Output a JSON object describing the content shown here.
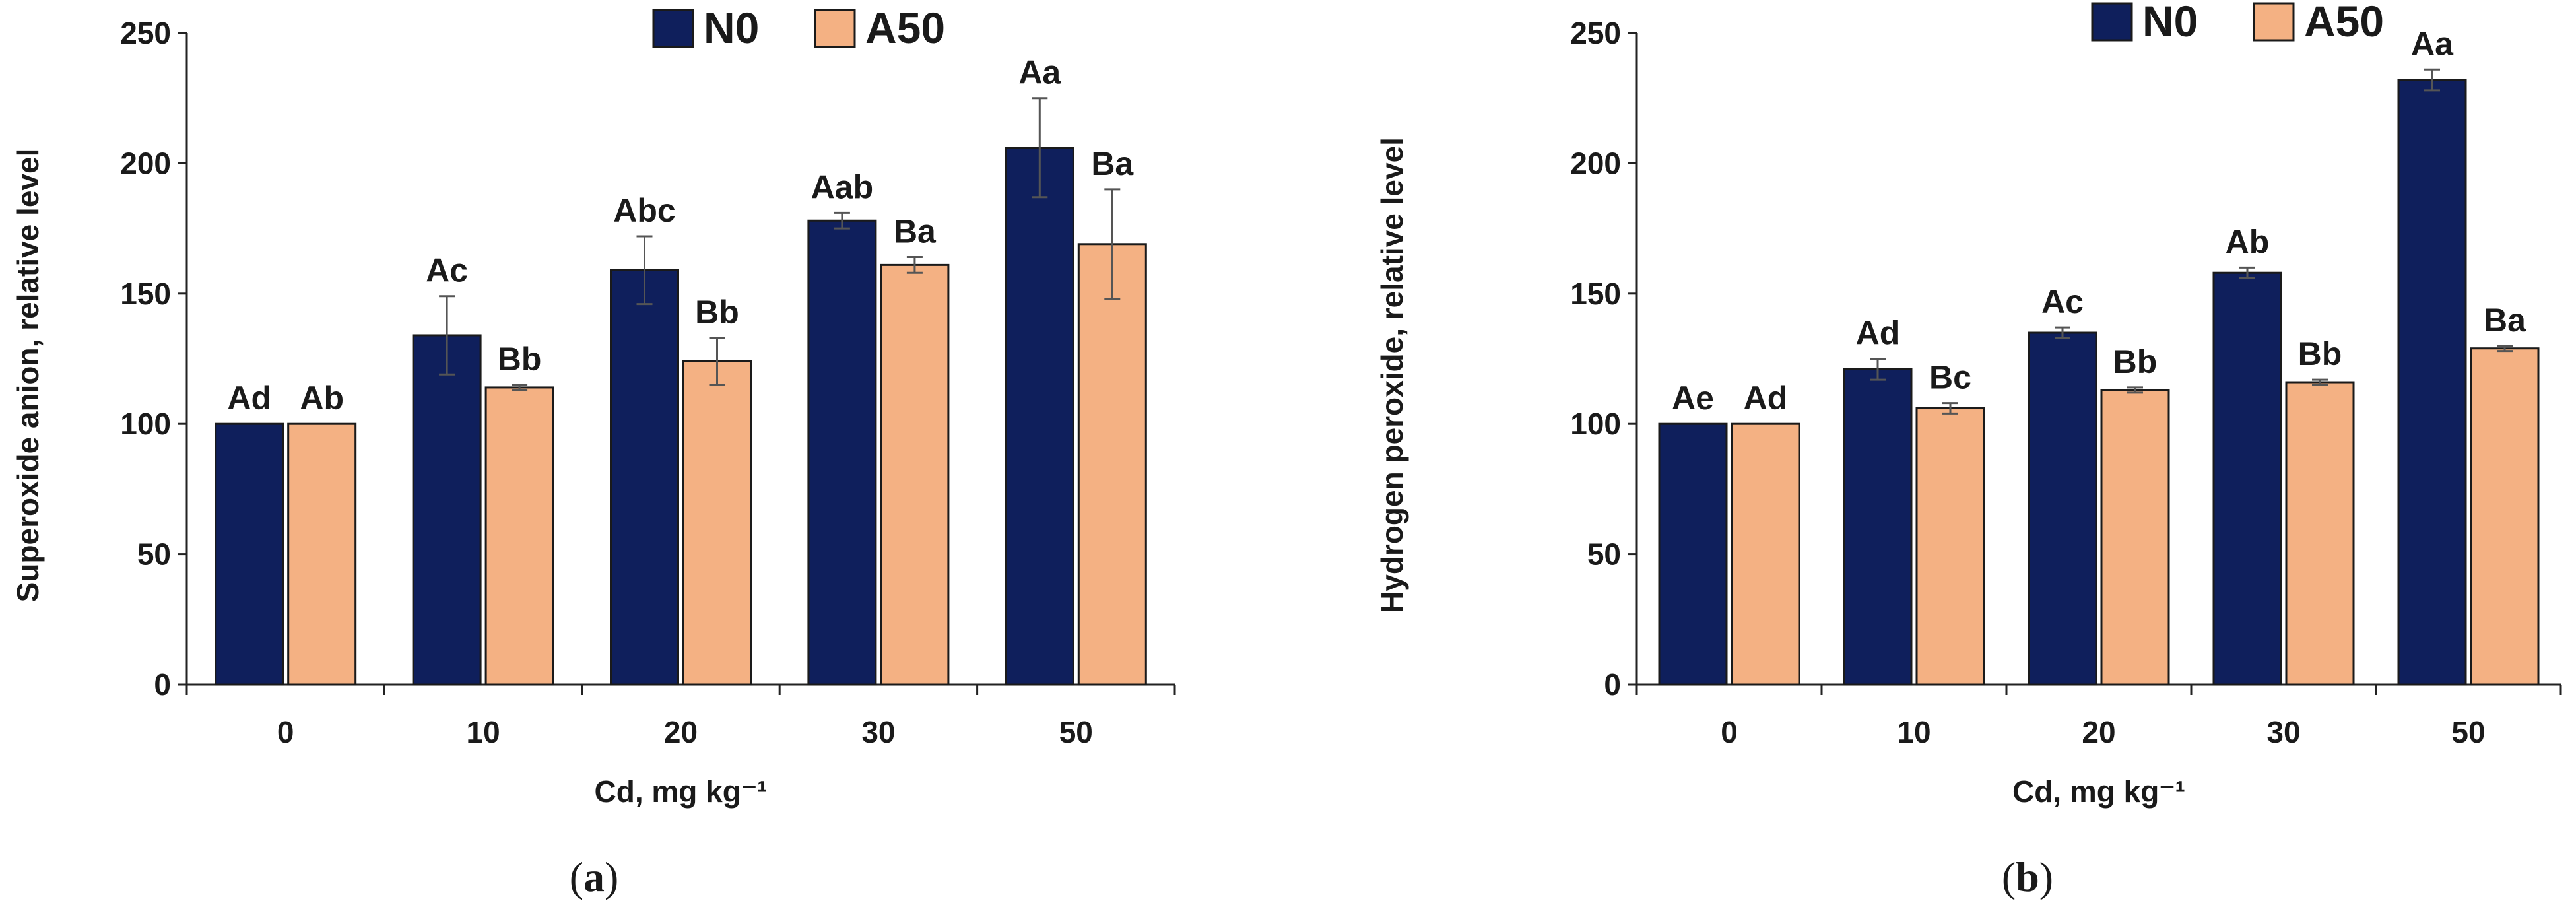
{
  "colors": {
    "N0": "#0f1f5c",
    "A50": "#f4b183"
  },
  "chart_data": [
    {
      "type": "bar",
      "panel_label": "(a)",
      "panel_letter": "a",
      "xlabel": "Cd, mg kg⁻¹",
      "ylabel": "Superoxide anion, relative level",
      "categories": [
        "0",
        "10",
        "20",
        "30",
        "50"
      ],
      "ylim": [
        0,
        250
      ],
      "yticks": [
        0,
        50,
        100,
        150,
        200,
        250
      ],
      "legend": [
        "N0",
        "A50"
      ],
      "series": [
        {
          "name": "N0",
          "values": [
            100,
            134,
            159,
            178,
            206
          ],
          "errors": [
            0,
            15,
            13,
            3,
            19
          ],
          "labels": [
            "Ad",
            "Ac",
            "Abc",
            "Aab",
            "Aa"
          ]
        },
        {
          "name": "A50",
          "values": [
            100,
            114,
            124,
            161,
            169
          ],
          "errors": [
            0,
            1,
            9,
            3,
            21
          ],
          "labels": [
            "Ab",
            "Bb",
            "Bb",
            "Ba",
            "Ba"
          ]
        }
      ]
    },
    {
      "type": "bar",
      "panel_label": "(b)",
      "panel_letter": "b",
      "xlabel": "Cd, mg kg⁻¹",
      "ylabel": "Hydrogen peroxide, relative level",
      "categories": [
        "0",
        "10",
        "20",
        "30",
        "50"
      ],
      "ylim": [
        0,
        250
      ],
      "yticks": [
        0,
        50,
        100,
        150,
        200,
        250
      ],
      "legend": [
        "N0",
        "A50"
      ],
      "series": [
        {
          "name": "N0",
          "values": [
            100,
            121,
            135,
            158,
            232
          ],
          "errors": [
            0,
            4,
            2,
            2,
            4
          ],
          "labels": [
            "Ae",
            "Ad",
            "Ac",
            "Ab",
            "Aa"
          ]
        },
        {
          "name": "A50",
          "values": [
            100,
            106,
            113,
            116,
            129
          ],
          "errors": [
            0,
            2,
            1,
            1,
            1
          ],
          "labels": [
            "Ad",
            "Bc",
            "Bb",
            "Bb",
            "Ba"
          ]
        }
      ]
    }
  ]
}
